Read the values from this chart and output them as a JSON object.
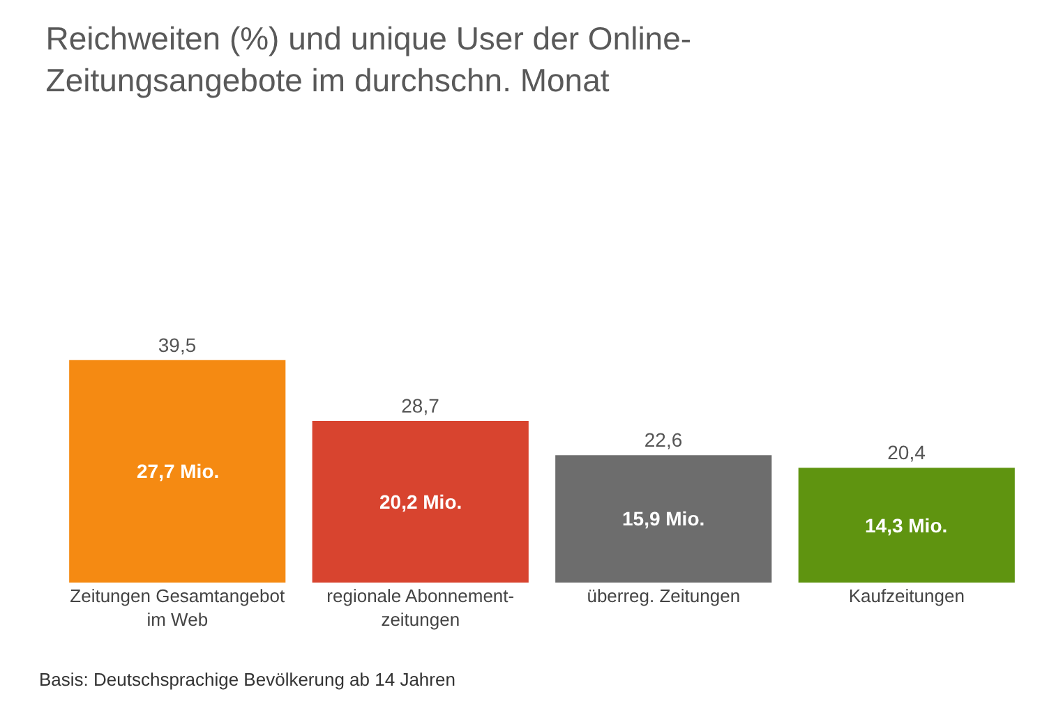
{
  "chart_data": {
    "type": "bar",
    "title": "Reichweiten (%) und unique User der Online-\nZeitungsangebote im durchschn. Monat",
    "categories": [
      "Zeitungen Gesamtangebot\nim Web",
      "regionale Abonnement-\nzeitungen",
      "überreg. Zeitungen",
      "Kaufzeitungen"
    ],
    "values": [
      39.5,
      28.7,
      22.6,
      20.4
    ],
    "colors": [
      "#f58a12",
      "#d8442f",
      "#6d6d6d",
      "#5f9410"
    ],
    "value_labels": [
      "39,5",
      "28,7",
      "22,6",
      "20,4"
    ],
    "annotations": [
      "27,7 Mio.",
      "20,2 Mio.",
      "15,9 Mio.",
      "14,3 Mio.",
      "Basis: Deutschsprachige Bevölkerung ab 14 Jahren"
    ],
    "grid": false,
    "legend": false
  }
}
